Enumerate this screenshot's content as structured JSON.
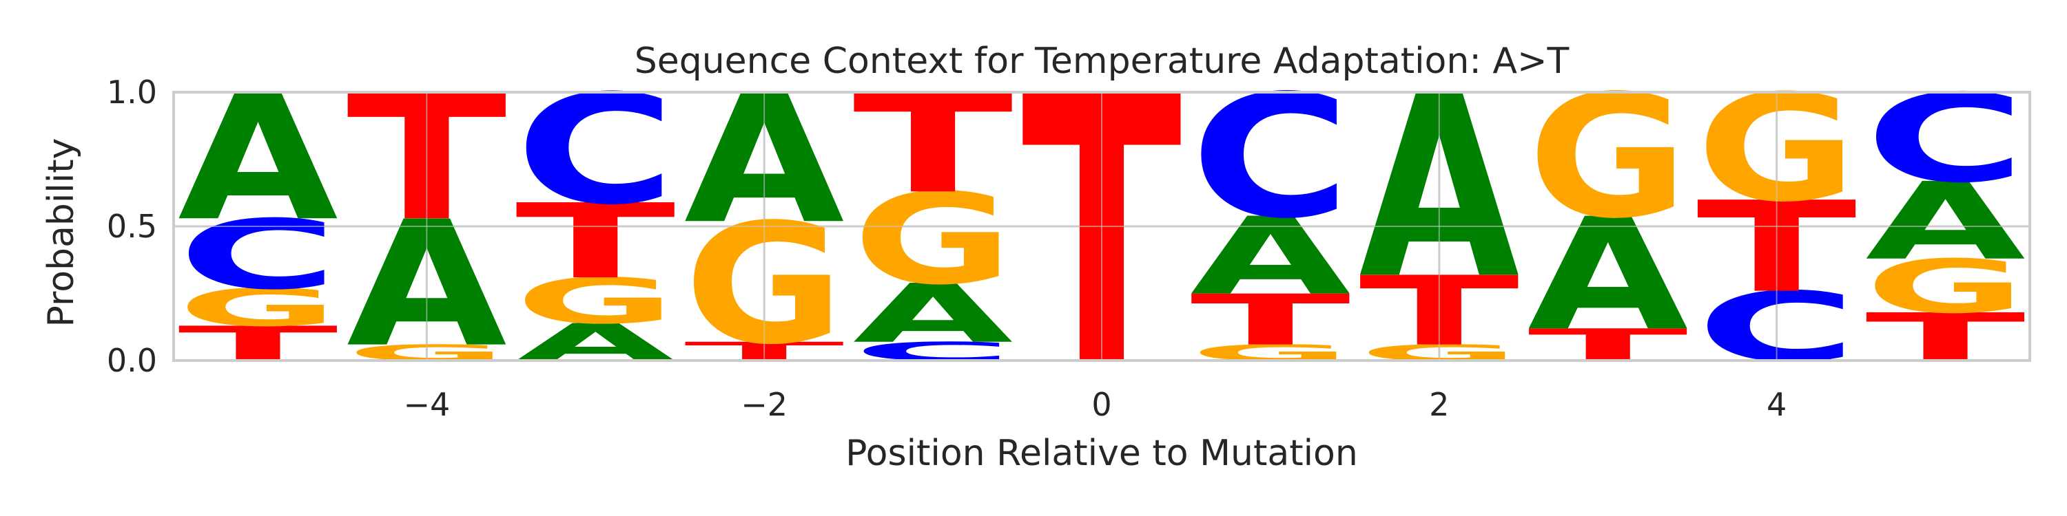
{
  "chart_data": {
    "type": "sequence-logo",
    "title": "Sequence Context for Temperature Adaptation: A>T",
    "xlabel": "Position Relative to Mutation",
    "ylabel": "Probability",
    "xlim": [
      -5.5,
      5.5
    ],
    "ylim": [
      0,
      1
    ],
    "xticks": [
      -4,
      -2,
      0,
      2,
      4
    ],
    "xtick_labels": [
      "−4",
      "−2",
      "0",
      "2",
      "4"
    ],
    "yticks": [
      0,
      0.5,
      1
    ],
    "ytick_labels": [
      "0.0",
      "0.5",
      "1.0"
    ],
    "grid": true,
    "colors": {
      "A": "#008000",
      "C": "#0000ff",
      "G": "#ffa500",
      "T": "#ff0000",
      "grid": "#cccccc",
      "frame": "#cccccc",
      "text": "#262626"
    },
    "positions": [
      {
        "x": -5,
        "probabilities": {
          "A": 0.47,
          "C": 0.26,
          "G": 0.14,
          "T": 0.13
        }
      },
      {
        "x": -4,
        "probabilities": {
          "A": 0.47,
          "C": 0.0,
          "G": 0.06,
          "T": 0.47
        }
      },
      {
        "x": -3,
        "probabilities": {
          "A": 0.14,
          "C": 0.41,
          "G": 0.17,
          "T": 0.28
        }
      },
      {
        "x": -2,
        "probabilities": {
          "A": 0.48,
          "C": 0.0,
          "G": 0.45,
          "T": 0.07
        }
      },
      {
        "x": -1,
        "probabilities": {
          "A": 0.22,
          "C": 0.07,
          "G": 0.34,
          "T": 0.37
        }
      },
      {
        "x": 0,
        "probabilities": {
          "A": 0.0,
          "C": 0.0,
          "G": 0.0,
          "T": 1.0
        }
      },
      {
        "x": 1,
        "probabilities": {
          "A": 0.29,
          "C": 0.46,
          "G": 0.06,
          "T": 0.19
        }
      },
      {
        "x": 2,
        "probabilities": {
          "A": 0.68,
          "C": 0.0,
          "G": 0.06,
          "T": 0.26
        }
      },
      {
        "x": 3,
        "probabilities": {
          "A": 0.42,
          "C": 0.0,
          "G": 0.46,
          "T": 0.12
        }
      },
      {
        "x": 4,
        "probabilities": {
          "A": 0.0,
          "C": 0.26,
          "G": 0.4,
          "T": 0.34
        }
      },
      {
        "x": 5,
        "probabilities": {
          "A": 0.29,
          "C": 0.33,
          "G": 0.2,
          "T": 0.18
        }
      }
    ]
  }
}
